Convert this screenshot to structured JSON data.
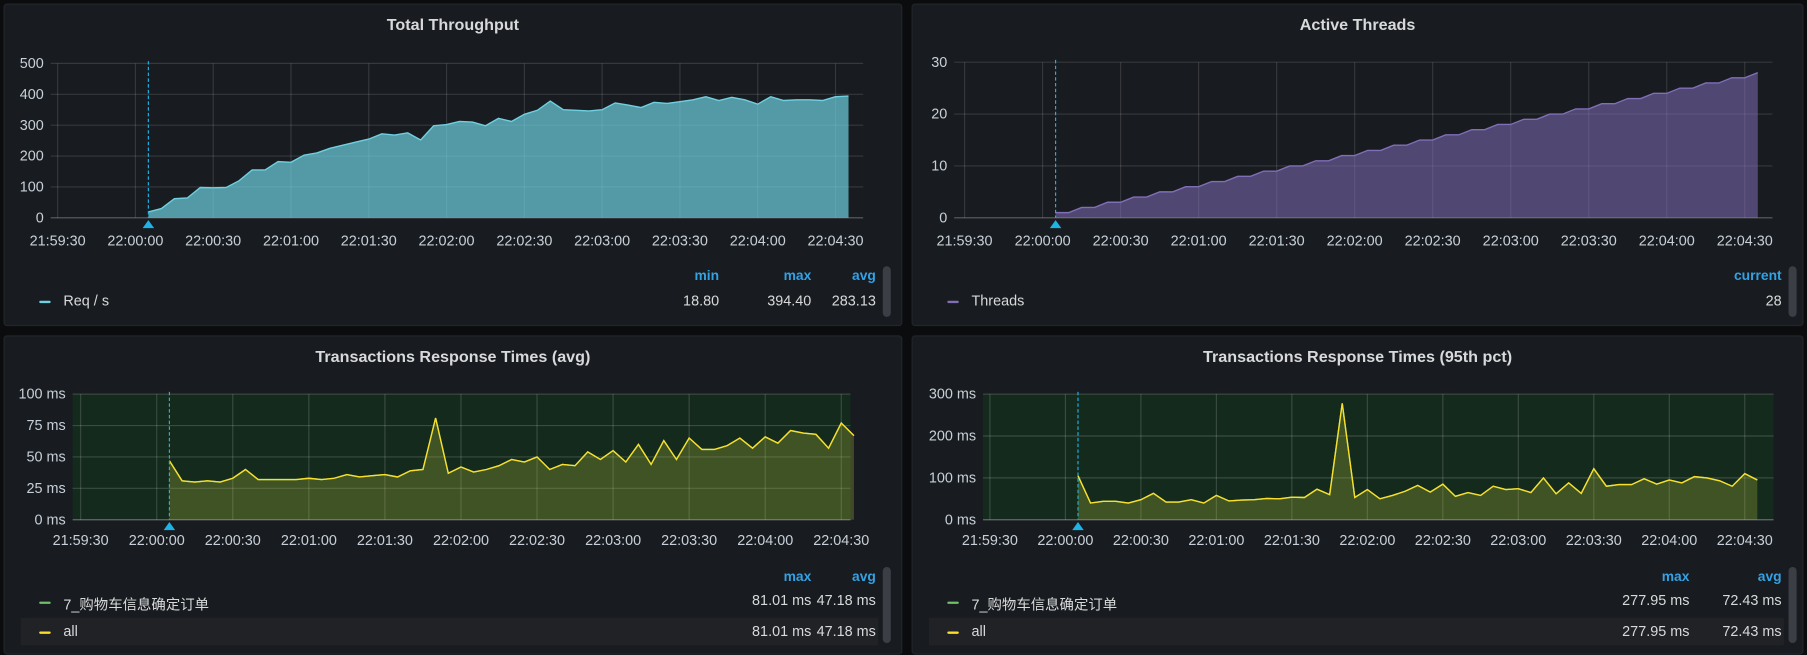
{
  "panels": {
    "throughput": {
      "title": "Total Throughput",
      "legend": {
        "headers": [
          "min",
          "max",
          "avg"
        ],
        "series": [
          {
            "label": "Req / s",
            "color": "#6ed0e0",
            "values": [
              "18.80",
              "394.40",
              "283.13"
            ]
          }
        ]
      }
    },
    "threads": {
      "title": "Active Threads",
      "legend": {
        "headers": [
          "current"
        ],
        "series": [
          {
            "label": "Threads",
            "color": "#806eb7",
            "values": [
              "28"
            ]
          }
        ]
      }
    },
    "rt_avg": {
      "title": "Transactions Response Times (avg)",
      "legend": {
        "headers": [
          "max",
          "avg"
        ],
        "series": [
          {
            "label": "7_购物车信息确定订单",
            "color": "#73bf69",
            "values": [
              "81.01 ms",
              "47.18 ms"
            ]
          },
          {
            "label": "all",
            "color": "#fade2a",
            "values": [
              "81.01 ms",
              "47.18 ms"
            ]
          }
        ]
      }
    },
    "rt_p95": {
      "title": "Transactions Response Times (95th pct)",
      "legend": {
        "headers": [
          "max",
          "avg"
        ],
        "series": [
          {
            "label": "7_购物车信息确定订单",
            "color": "#73bf69",
            "values": [
              "277.95 ms",
              "72.43 ms"
            ]
          },
          {
            "label": "all",
            "color": "#fade2a",
            "values": [
              "277.95 ms",
              "72.43 ms"
            ]
          }
        ]
      }
    }
  },
  "chart_data": [
    {
      "type": "area",
      "title": "Total Throughput",
      "ylim": [
        0,
        500
      ],
      "yticks": [
        "0",
        "100",
        "200",
        "300",
        "400",
        "500"
      ],
      "xticks": [
        "21:59:30",
        "22:00:00",
        "22:00:30",
        "22:01:00",
        "22:01:30",
        "22:02:00",
        "22:02:30",
        "22:03:00",
        "22:03:30",
        "22:04:00",
        "22:04:30"
      ],
      "grid": true,
      "legend": "bottom",
      "x": [
        "22:00:05",
        "22:00:10",
        "22:00:15",
        "22:00:20",
        "22:00:25",
        "22:00:30",
        "22:00:35",
        "22:00:40",
        "22:00:45",
        "22:00:50",
        "22:00:55",
        "22:01:00",
        "22:01:05",
        "22:01:10",
        "22:01:15",
        "22:01:20",
        "22:01:25",
        "22:01:30",
        "22:01:35",
        "22:01:40",
        "22:01:45",
        "22:01:50",
        "22:01:55",
        "22:02:00",
        "22:02:05",
        "22:02:10",
        "22:02:15",
        "22:02:20",
        "22:02:25",
        "22:02:30",
        "22:02:35",
        "22:02:40",
        "22:02:45",
        "22:02:50",
        "22:02:55",
        "22:03:00",
        "22:03:05",
        "22:03:10",
        "22:03:15",
        "22:03:20",
        "22:03:25",
        "22:03:30",
        "22:03:35",
        "22:03:40",
        "22:03:45",
        "22:03:50",
        "22:03:55",
        "22:04:00",
        "22:04:05",
        "22:04:10",
        "22:04:15",
        "22:04:20",
        "22:04:25",
        "22:04:30",
        "22:04:35"
      ],
      "series": [
        {
          "name": "Req / s",
          "color": "#6ed0e0",
          "values": [
            19,
            30,
            62,
            64,
            98,
            97,
            98,
            120,
            155,
            155,
            182,
            180,
            203,
            210,
            225,
            235,
            245,
            255,
            272,
            268,
            275,
            252,
            298,
            302,
            312,
            310,
            298,
            322,
            312,
            335,
            348,
            378,
            350,
            348,
            346,
            350,
            372,
            365,
            357,
            374,
            370,
            376,
            382,
            392,
            380,
            390,
            382,
            368,
            392,
            380,
            382,
            382,
            380,
            392,
            394
          ]
        }
      ]
    },
    {
      "type": "area",
      "title": "Active Threads",
      "ylim": [
        0,
        30
      ],
      "yticks": [
        "0",
        "10",
        "20",
        "30"
      ],
      "xticks": [
        "21:59:30",
        "22:00:00",
        "22:00:30",
        "22:01:00",
        "22:01:30",
        "22:02:00",
        "22:02:30",
        "22:03:00",
        "22:03:30",
        "22:04:00",
        "22:04:30"
      ],
      "grid": true,
      "legend": "bottom",
      "x": [
        "22:00:05",
        "22:00:10",
        "22:00:15",
        "22:00:20",
        "22:00:25",
        "22:00:30",
        "22:00:35",
        "22:00:40",
        "22:00:45",
        "22:00:50",
        "22:00:55",
        "22:01:00",
        "22:01:05",
        "22:01:10",
        "22:01:15",
        "22:01:20",
        "22:01:25",
        "22:01:30",
        "22:01:35",
        "22:01:40",
        "22:01:45",
        "22:01:50",
        "22:01:55",
        "22:02:00",
        "22:02:05",
        "22:02:10",
        "22:02:15",
        "22:02:20",
        "22:02:25",
        "22:02:30",
        "22:02:35",
        "22:02:40",
        "22:02:45",
        "22:02:50",
        "22:02:55",
        "22:03:00",
        "22:03:05",
        "22:03:10",
        "22:03:15",
        "22:03:20",
        "22:03:25",
        "22:03:30",
        "22:03:35",
        "22:03:40",
        "22:03:45",
        "22:03:50",
        "22:03:55",
        "22:04:00",
        "22:04:05",
        "22:04:10",
        "22:04:15",
        "22:04:20",
        "22:04:25",
        "22:04:30",
        "22:04:35"
      ],
      "series": [
        {
          "name": "Threads",
          "color": "#806eb7",
          "values": [
            1,
            1,
            2,
            2,
            3,
            3,
            4,
            4,
            5,
            5,
            6,
            6,
            7,
            7,
            8,
            8,
            9,
            9,
            10,
            10,
            11,
            11,
            12,
            12,
            13,
            13,
            14,
            14,
            15,
            15,
            16,
            16,
            17,
            17,
            18,
            18,
            19,
            19,
            20,
            20,
            21,
            21,
            22,
            22,
            23,
            23,
            24,
            24,
            25,
            25,
            26,
            26,
            27,
            27,
            28
          ]
        }
      ]
    },
    {
      "type": "area",
      "title": "Transactions Response Times (avg)",
      "ylim": [
        0,
        100
      ],
      "yticks": [
        "0 ms",
        "25 ms",
        "50 ms",
        "75 ms",
        "100 ms"
      ],
      "xticks": [
        "21:59:30",
        "22:00:00",
        "22:00:30",
        "22:01:00",
        "22:01:30",
        "22:02:00",
        "22:02:30",
        "22:03:00",
        "22:03:30",
        "22:04:00",
        "22:04:30"
      ],
      "grid": true,
      "legend": "bottom",
      "threshold_color": "#142a1c",
      "x": [
        "22:00:05",
        "22:00:10",
        "22:00:15",
        "22:00:20",
        "22:00:25",
        "22:00:30",
        "22:00:35",
        "22:00:40",
        "22:00:45",
        "22:00:50",
        "22:00:55",
        "22:01:00",
        "22:01:05",
        "22:01:10",
        "22:01:15",
        "22:01:20",
        "22:01:25",
        "22:01:30",
        "22:01:35",
        "22:01:40",
        "22:01:45",
        "22:01:50",
        "22:01:55",
        "22:02:00",
        "22:02:05",
        "22:02:10",
        "22:02:15",
        "22:02:20",
        "22:02:25",
        "22:02:30",
        "22:02:35",
        "22:02:40",
        "22:02:45",
        "22:02:50",
        "22:02:55",
        "22:03:00",
        "22:03:05",
        "22:03:10",
        "22:03:15",
        "22:03:20",
        "22:03:25",
        "22:03:30",
        "22:03:35",
        "22:03:40",
        "22:03:45",
        "22:03:50",
        "22:03:55",
        "22:04:00",
        "22:04:05",
        "22:04:10",
        "22:04:15",
        "22:04:20",
        "22:04:25",
        "22:04:30",
        "22:04:35"
      ],
      "series": [
        {
          "name": "7_购物车信息确定订单",
          "color": "#73bf69",
          "values": [
            47,
            31,
            30,
            31,
            30,
            33,
            40,
            32,
            32,
            32,
            32,
            33,
            32,
            33,
            36,
            34,
            35,
            36,
            34,
            39,
            40,
            81,
            37,
            42,
            38,
            40,
            43,
            48,
            46,
            50,
            40,
            44,
            43,
            54,
            48,
            55,
            46,
            60,
            44,
            63,
            48,
            65,
            56,
            56,
            59,
            65,
            57,
            66,
            61,
            71,
            69,
            68,
            57,
            77,
            67
          ]
        },
        {
          "name": "all",
          "color": "#fade2a",
          "values": [
            47,
            31,
            30,
            31,
            30,
            33,
            40,
            32,
            32,
            32,
            32,
            33,
            32,
            33,
            36,
            34,
            35,
            36,
            34,
            39,
            40,
            81,
            37,
            42,
            38,
            40,
            43,
            48,
            46,
            50,
            40,
            44,
            43,
            54,
            48,
            55,
            46,
            60,
            44,
            63,
            48,
            65,
            56,
            56,
            59,
            65,
            57,
            66,
            61,
            71,
            69,
            68,
            57,
            77,
            67
          ]
        }
      ]
    },
    {
      "type": "area",
      "title": "Transactions Response Times (95th pct)",
      "ylim": [
        0,
        300
      ],
      "yticks": [
        "0 ms",
        "100 ms",
        "200 ms",
        "300 ms"
      ],
      "xticks": [
        "21:59:30",
        "22:00:00",
        "22:00:30",
        "22:01:00",
        "22:01:30",
        "22:02:00",
        "22:02:30",
        "22:03:00",
        "22:03:30",
        "22:04:00",
        "22:04:30"
      ],
      "grid": true,
      "legend": "bottom",
      "threshold_color": "#142a1c",
      "x": [
        "22:00:05",
        "22:00:10",
        "22:00:15",
        "22:00:20",
        "22:00:25",
        "22:00:30",
        "22:00:35",
        "22:00:40",
        "22:00:45",
        "22:00:50",
        "22:00:55",
        "22:01:00",
        "22:01:05",
        "22:01:10",
        "22:01:15",
        "22:01:20",
        "22:01:25",
        "22:01:30",
        "22:01:35",
        "22:01:40",
        "22:01:45",
        "22:01:50",
        "22:01:55",
        "22:02:00",
        "22:02:05",
        "22:02:10",
        "22:02:15",
        "22:02:20",
        "22:02:25",
        "22:02:30",
        "22:02:35",
        "22:02:40",
        "22:02:45",
        "22:02:50",
        "22:02:55",
        "22:03:00",
        "22:03:05",
        "22:03:10",
        "22:03:15",
        "22:03:20",
        "22:03:25",
        "22:03:30",
        "22:03:35",
        "22:03:40",
        "22:03:45",
        "22:03:50",
        "22:03:55",
        "22:04:00",
        "22:04:05",
        "22:04:10",
        "22:04:15",
        "22:04:20",
        "22:04:25",
        "22:04:30",
        "22:04:35"
      ],
      "series": [
        {
          "name": "7_购物车信息确定订单",
          "color": "#73bf69",
          "values": [
            105,
            40,
            44,
            44,
            40,
            48,
            63,
            42,
            42,
            48,
            40,
            58,
            45,
            47,
            48,
            51,
            50,
            54,
            53,
            73,
            60,
            278,
            53,
            72,
            50,
            58,
            68,
            82,
            66,
            85,
            56,
            65,
            58,
            80,
            72,
            74,
            65,
            100,
            62,
            88,
            63,
            122,
            80,
            84,
            84,
            98,
            85,
            95,
            88,
            103,
            100,
            93,
            80,
            110,
            95
          ]
        },
        {
          "name": "all",
          "color": "#fade2a",
          "values": [
            105,
            40,
            44,
            44,
            40,
            48,
            63,
            42,
            42,
            48,
            40,
            58,
            45,
            47,
            48,
            51,
            50,
            54,
            53,
            73,
            60,
            278,
            53,
            72,
            50,
            58,
            68,
            82,
            66,
            85,
            56,
            65,
            58,
            80,
            72,
            74,
            65,
            100,
            62,
            88,
            63,
            122,
            80,
            84,
            84,
            98,
            85,
            95,
            88,
            103,
            100,
            93,
            80,
            110,
            95
          ]
        }
      ]
    }
  ],
  "annotation_color": "#1fb2e5"
}
